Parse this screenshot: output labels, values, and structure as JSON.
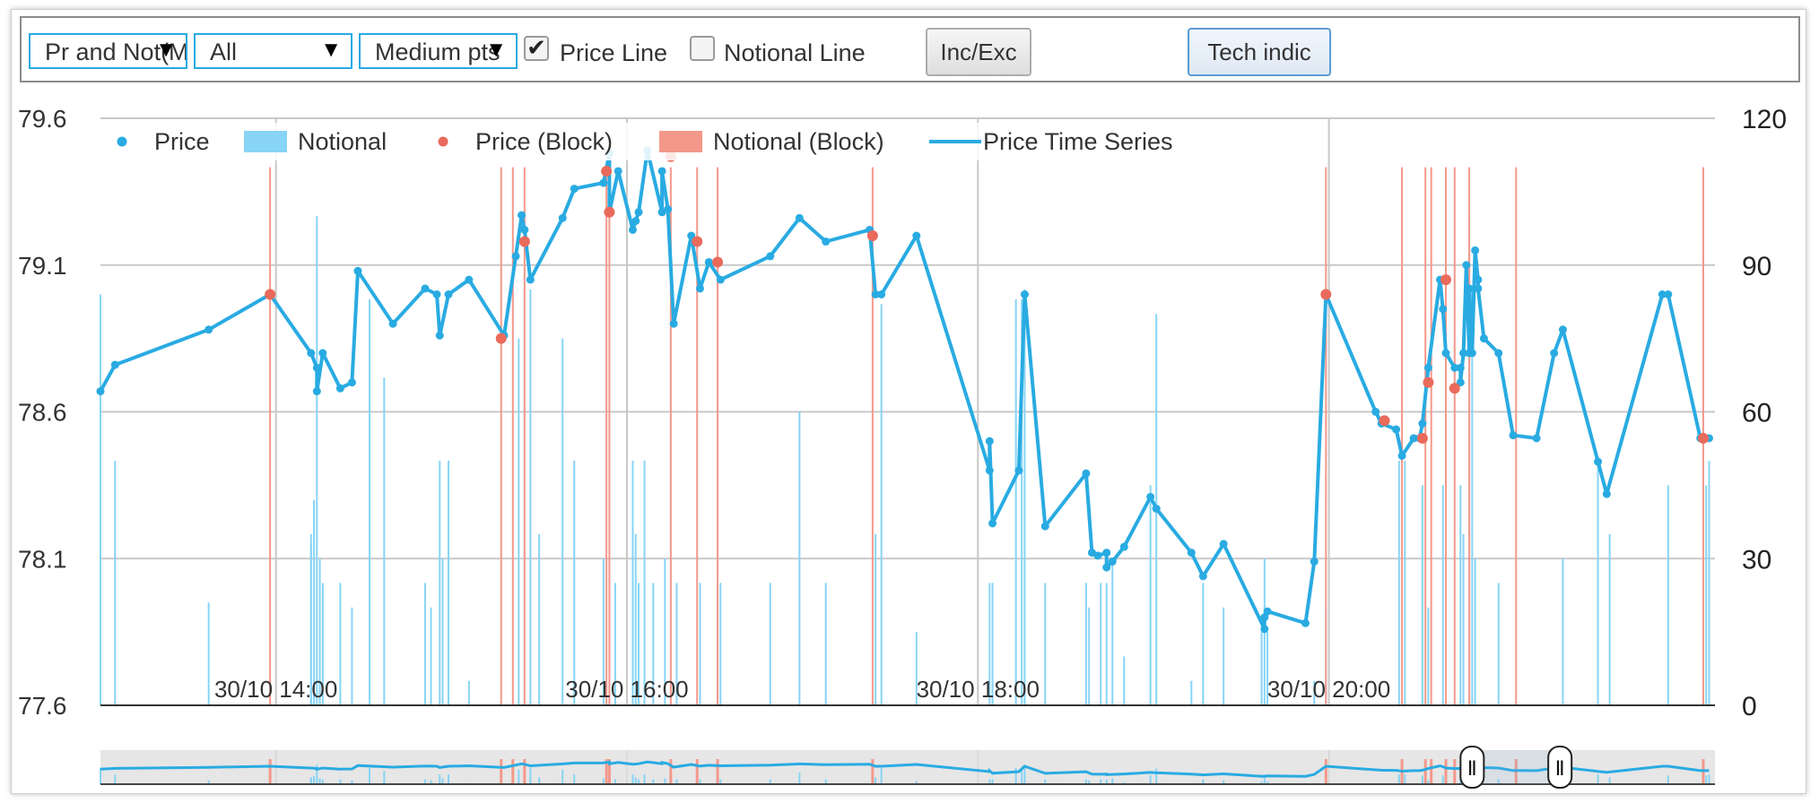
{
  "toolbar": {
    "dropdowns": [
      {
        "value": "Pr and Not(M"
      },
      {
        "value": "All"
      },
      {
        "value": "Medium pts"
      }
    ],
    "checkboxes": [
      {
        "label": "Price Line",
        "checked": true
      },
      {
        "label": "Notional Line",
        "checked": false
      }
    ],
    "buttons": [
      {
        "label": "Inc/Exc"
      },
      {
        "label": "Tech indic"
      }
    ]
  },
  "chart_data": {
    "type": "line",
    "x_axis": {
      "type": "time",
      "range": [
        "30/10 12:55",
        "30/10 22:07"
      ],
      "tick_labels": [
        "30/10 14:00",
        "30/10 16:00",
        "30/10 18:00",
        "30/10 20:00"
      ],
      "tick_minutes": [
        840,
        960,
        1080,
        1200
      ]
    },
    "y_left": {
      "label": "",
      "ticks": [
        79.6,
        79.1,
        78.6,
        78.1,
        77.6
      ],
      "range": [
        77.6,
        79.6
      ]
    },
    "y_right": {
      "label": "",
      "ticks": [
        120,
        90,
        60,
        30,
        0
      ],
      "range": [
        0,
        120
      ]
    },
    "grid": true,
    "legend": {
      "placement": "top",
      "items": [
        {
          "label": "Price",
          "kind": "dot",
          "color": "#29abe2"
        },
        {
          "label": "Notional",
          "kind": "bar",
          "color": "#87d4f5"
        },
        {
          "label": "Price (Block)",
          "kind": "dot",
          "color": "#ea6a5b"
        },
        {
          "label": "Notional (Block)",
          "kind": "bar",
          "color": "#f4988b"
        },
        {
          "label": "Price Time Series",
          "kind": "line",
          "color": "#29abe2"
        }
      ]
    },
    "colors": {
      "price": "#29abe2",
      "notional": "#87d4f5",
      "block_price": "#ea6a5b",
      "block_notional": "#f4988b",
      "grid": "#c8c8c8"
    },
    "price_series": [
      [
        780,
        78.67
      ],
      [
        785,
        78.76
      ],
      [
        817,
        78.88
      ],
      [
        838,
        79.0
      ],
      [
        852,
        78.8
      ],
      [
        854,
        78.75
      ],
      [
        854,
        78.67
      ],
      [
        856,
        78.8
      ],
      [
        862,
        78.68
      ],
      [
        866,
        78.7
      ],
      [
        868,
        79.08
      ],
      [
        880,
        78.9
      ],
      [
        891,
        79.02
      ],
      [
        895,
        79.0
      ],
      [
        896,
        78.86
      ],
      [
        899,
        79.0
      ],
      [
        906,
        79.05
      ],
      [
        918,
        78.86
      ],
      [
        922,
        79.13
      ],
      [
        924,
        79.27
      ],
      [
        925,
        79.22
      ],
      [
        927,
        79.05
      ],
      [
        938,
        79.26
      ],
      [
        942,
        79.36
      ],
      [
        952,
        79.38
      ],
      [
        954,
        79.48
      ],
      [
        954,
        79.28
      ],
      [
        957,
        79.42
      ],
      [
        962,
        79.22
      ],
      [
        963,
        79.25
      ],
      [
        964,
        79.28
      ],
      [
        967,
        79.49
      ],
      [
        972,
        79.28
      ],
      [
        972,
        79.42
      ],
      [
        974,
        79.29
      ],
      [
        976,
        78.9
      ],
      [
        982,
        79.2
      ],
      [
        985,
        79.02
      ],
      [
        988,
        79.11
      ],
      [
        992,
        79.05
      ],
      [
        1009,
        79.13
      ],
      [
        1019,
        79.26
      ],
      [
        1028,
        79.18
      ],
      [
        1043,
        79.22
      ],
      [
        1045,
        79.0
      ],
      [
        1047,
        79.0
      ],
      [
        1059,
        79.2
      ],
      [
        1084,
        78.4
      ],
      [
        1084,
        78.5
      ],
      [
        1085,
        78.22
      ],
      [
        1094,
        78.4
      ],
      [
        1096,
        79.0
      ],
      [
        1103,
        78.21
      ],
      [
        1117,
        78.39
      ],
      [
        1119,
        78.12
      ],
      [
        1121,
        78.11
      ],
      [
        1124,
        78.12
      ],
      [
        1124,
        78.07
      ],
      [
        1126,
        78.09
      ],
      [
        1130,
        78.14
      ],
      [
        1139,
        78.31
      ],
      [
        1141,
        78.27
      ],
      [
        1153,
        78.12
      ],
      [
        1157,
        78.04
      ],
      [
        1164,
        78.15
      ],
      [
        1178,
        77.86
      ],
      [
        1178,
        77.9
      ],
      [
        1179,
        77.92
      ],
      [
        1192,
        77.88
      ],
      [
        1195,
        78.09
      ],
      [
        1199,
        79.0
      ],
      [
        1216,
        78.6
      ],
      [
        1218,
        78.56
      ],
      [
        1223,
        78.54
      ],
      [
        1225,
        78.45
      ],
      [
        1229,
        78.51
      ],
      [
        1231,
        78.51
      ],
      [
        1232,
        78.56
      ],
      [
        1234,
        78.75
      ],
      [
        1238,
        79.05
      ],
      [
        1239,
        78.95
      ],
      [
        1240,
        78.8
      ],
      [
        1243,
        78.75
      ],
      [
        1245,
        78.75
      ],
      [
        1245,
        78.7
      ],
      [
        1246,
        78.8
      ],
      [
        1247,
        79.1
      ],
      [
        1248,
        78.8
      ],
      [
        1248,
        79.02
      ],
      [
        1249,
        78.8
      ],
      [
        1250,
        79.15
      ],
      [
        1251,
        79.05
      ],
      [
        1251,
        79.02
      ],
      [
        1253,
        78.85
      ],
      [
        1258,
        78.8
      ],
      [
        1263,
        78.52
      ],
      [
        1271,
        78.51
      ],
      [
        1277,
        78.8
      ],
      [
        1280,
        78.88
      ],
      [
        1292,
        78.43
      ],
      [
        1295,
        78.32
      ],
      [
        1314,
        79.0
      ],
      [
        1316,
        79.0
      ],
      [
        1327,
        78.51
      ],
      [
        1330,
        78.51
      ]
    ],
    "block_price_points": [
      [
        838,
        79.0
      ],
      [
        917,
        78.85
      ],
      [
        925,
        79.18
      ],
      [
        953,
        79.42
      ],
      [
        954,
        79.28
      ],
      [
        975,
        79.47
      ],
      [
        984,
        79.18
      ],
      [
        991,
        79.11
      ],
      [
        1044,
        79.2
      ],
      [
        1199,
        79.0
      ],
      [
        1219,
        78.57
      ],
      [
        1232,
        78.51
      ],
      [
        1234,
        78.7
      ],
      [
        1240,
        79.05
      ],
      [
        1243,
        78.68
      ],
      [
        1328,
        78.51
      ]
    ],
    "notional_bars": [
      [
        780,
        84
      ],
      [
        785,
        50
      ],
      [
        817,
        21
      ],
      [
        852,
        33
      ],
      [
        852,
        35
      ],
      [
        853,
        42
      ],
      [
        854,
        100
      ],
      [
        855,
        30
      ],
      [
        856,
        25
      ],
      [
        862,
        25
      ],
      [
        866,
        20
      ],
      [
        872,
        83
      ],
      [
        877,
        67
      ],
      [
        891,
        25
      ],
      [
        893,
        20
      ],
      [
        896,
        50
      ],
      [
        897,
        30
      ],
      [
        899,
        50
      ],
      [
        906,
        5
      ],
      [
        923,
        75
      ],
      [
        925,
        85
      ],
      [
        927,
        85
      ],
      [
        930,
        35
      ],
      [
        938,
        75
      ],
      [
        942,
        50
      ],
      [
        952,
        30
      ],
      [
        956,
        25
      ],
      [
        962,
        50
      ],
      [
        963,
        35
      ],
      [
        964,
        25
      ],
      [
        966,
        50
      ],
      [
        969,
        25
      ],
      [
        973,
        30
      ],
      [
        977,
        25
      ],
      [
        985,
        25
      ],
      [
        992,
        25
      ],
      [
        1009,
        25
      ],
      [
        1019,
        60
      ],
      [
        1028,
        25
      ],
      [
        1045,
        35
      ],
      [
        1047,
        82
      ],
      [
        1059,
        15
      ],
      [
        1084,
        25
      ],
      [
        1085,
        25
      ],
      [
        1093,
        83
      ],
      [
        1095,
        83
      ],
      [
        1096,
        85
      ],
      [
        1103,
        25
      ],
      [
        1117,
        25
      ],
      [
        1118,
        20
      ],
      [
        1122,
        25
      ],
      [
        1124,
        25
      ],
      [
        1126,
        30
      ],
      [
        1130,
        10
      ],
      [
        1139,
        45
      ],
      [
        1141,
        80
      ],
      [
        1153,
        5
      ],
      [
        1157,
        25
      ],
      [
        1164,
        20
      ],
      [
        1177,
        15
      ],
      [
        1178,
        30
      ],
      [
        1179,
        15
      ],
      [
        1195,
        5
      ],
      [
        1199,
        20
      ],
      [
        1224,
        50
      ],
      [
        1226,
        50
      ],
      [
        1232,
        45
      ],
      [
        1234,
        20
      ],
      [
        1239,
        45
      ],
      [
        1245,
        45
      ],
      [
        1246,
        35
      ],
      [
        1248,
        100
      ],
      [
        1249,
        85
      ],
      [
        1250,
        30
      ],
      [
        1258,
        25
      ],
      [
        1280,
        30
      ],
      [
        1292,
        50
      ],
      [
        1296,
        35
      ],
      [
        1316,
        45
      ],
      [
        1329,
        45
      ],
      [
        1330,
        50
      ]
    ],
    "block_notional_bars": [
      [
        838,
        110
      ],
      [
        917,
        110
      ],
      [
        921,
        110
      ],
      [
        925,
        110
      ],
      [
        953,
        110
      ],
      [
        954,
        110
      ],
      [
        975,
        110
      ],
      [
        984,
        110
      ],
      [
        991,
        110
      ],
      [
        1044,
        110
      ],
      [
        1199,
        110
      ],
      [
        1225,
        110
      ],
      [
        1233,
        110
      ],
      [
        1235,
        110
      ],
      [
        1240,
        110
      ],
      [
        1243,
        110
      ],
      [
        1248,
        110
      ],
      [
        1264,
        110
      ],
      [
        1328,
        110
      ]
    ],
    "navigator": {
      "handle_start": 1249,
      "handle_end": 1279,
      "handle_glyph": "Ⅱ"
    }
  }
}
